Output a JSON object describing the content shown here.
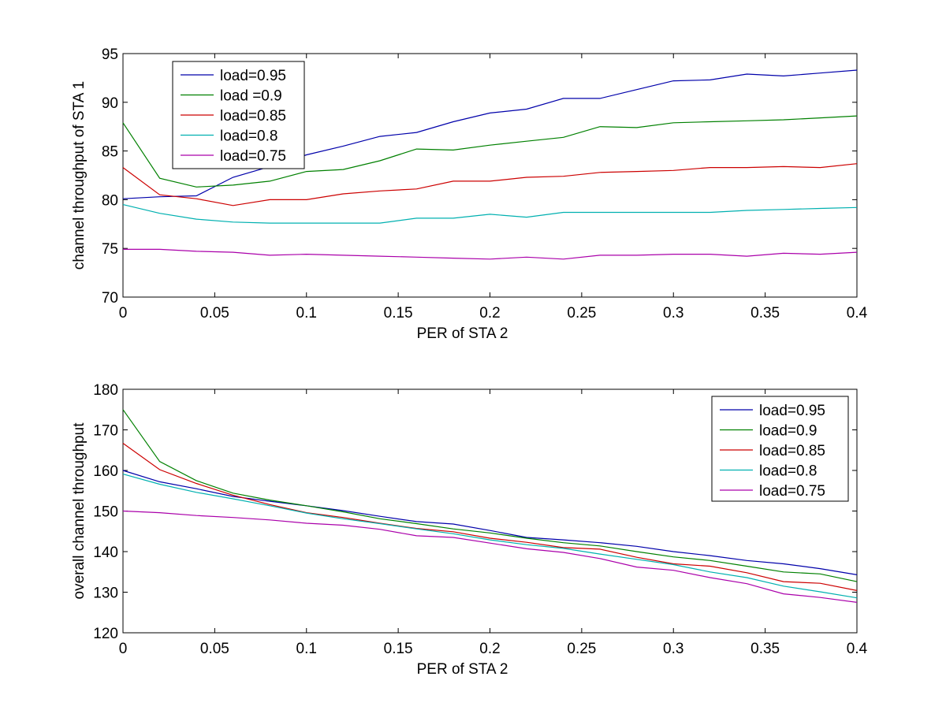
{
  "chart_data": [
    {
      "type": "line",
      "title": "",
      "xlabel": "PER of STA 2",
      "ylabel": "channel throughput of STA 1",
      "xlim": [
        0,
        0.4
      ],
      "ylim": [
        70,
        95
      ],
      "xticks": [
        0,
        0.05,
        0.1,
        0.15,
        0.2,
        0.25,
        0.3,
        0.35,
        0.4
      ],
      "xtick_labels": [
        "0",
        "0.05",
        "0.1",
        "0.15",
        "0.2",
        "0.25",
        "0.3",
        "0.35",
        "0.4"
      ],
      "yticks": [
        70,
        75,
        80,
        85,
        90,
        95
      ],
      "ytick_labels": [
        "70",
        "75",
        "80",
        "85",
        "90",
        "95"
      ],
      "grid": false,
      "legend_position": "top-left",
      "x": [
        0,
        0.02,
        0.04,
        0.06,
        0.08,
        0.1,
        0.12,
        0.14,
        0.16,
        0.18,
        0.2,
        0.22,
        0.24,
        0.26,
        0.28,
        0.3,
        0.32,
        0.34,
        0.36,
        0.38,
        0.4
      ],
      "series": [
        {
          "name": "load=0.95",
          "color": "#0000aa",
          "values": [
            80.1,
            80.3,
            80.4,
            82.3,
            83.4,
            84.6,
            85.5,
            86.5,
            86.9,
            88.0,
            88.9,
            89.3,
            90.4,
            90.4,
            91.3,
            92.2,
            92.3,
            92.9,
            92.7,
            93.0,
            93.3
          ]
        },
        {
          "name": "load =0.9",
          "color": "#008000",
          "values": [
            87.9,
            82.2,
            81.3,
            81.5,
            81.9,
            82.9,
            83.1,
            84.0,
            85.2,
            85.1,
            85.6,
            86.0,
            86.4,
            87.5,
            87.4,
            87.9,
            88.0,
            88.1,
            88.2,
            88.4,
            88.6
          ]
        },
        {
          "name": "load=0.85",
          "color": "#cc0000",
          "values": [
            83.3,
            80.5,
            80.1,
            79.4,
            80.0,
            80.0,
            80.6,
            80.9,
            81.1,
            81.9,
            81.9,
            82.3,
            82.4,
            82.8,
            82.9,
            83.0,
            83.3,
            83.3,
            83.4,
            83.3,
            83.7
          ]
        },
        {
          "name": "load=0.8",
          "color": "#00b0b0",
          "values": [
            79.5,
            78.6,
            78.0,
            77.7,
            77.6,
            77.6,
            77.6,
            77.6,
            78.1,
            78.1,
            78.5,
            78.2,
            78.7,
            78.7,
            78.7,
            78.7,
            78.7,
            78.9,
            79.0,
            79.1,
            79.2
          ]
        },
        {
          "name": "load=0.75",
          "color": "#aa00aa",
          "values": [
            74.9,
            74.9,
            74.7,
            74.6,
            74.3,
            74.4,
            74.3,
            74.2,
            74.1,
            74.0,
            73.9,
            74.1,
            73.9,
            74.3,
            74.3,
            74.4,
            74.4,
            74.2,
            74.5,
            74.4,
            74.6
          ]
        }
      ]
    },
    {
      "type": "line",
      "title": "",
      "xlabel": "PER of STA 2",
      "ylabel": "overall channel throughput",
      "xlim": [
        0,
        0.4
      ],
      "ylim": [
        120,
        180
      ],
      "xticks": [
        0,
        0.05,
        0.1,
        0.15,
        0.2,
        0.25,
        0.3,
        0.35,
        0.4
      ],
      "xtick_labels": [
        "0",
        "0.05",
        "0.1",
        "0.15",
        "0.2",
        "0.25",
        "0.3",
        "0.35",
        "0.4"
      ],
      "yticks": [
        120,
        130,
        140,
        150,
        160,
        170,
        180
      ],
      "ytick_labels": [
        "120",
        "130",
        "140",
        "150",
        "160",
        "170",
        "180"
      ],
      "grid": false,
      "legend_position": "top-right",
      "x": [
        0,
        0.02,
        0.04,
        0.06,
        0.08,
        0.1,
        0.12,
        0.14,
        0.16,
        0.18,
        0.2,
        0.22,
        0.24,
        0.26,
        0.28,
        0.3,
        0.32,
        0.34,
        0.36,
        0.38,
        0.4
      ],
      "series": [
        {
          "name": "load=0.95",
          "color": "#0000aa",
          "values": [
            160.0,
            157.2,
            155.5,
            153.6,
            152.4,
            151.3,
            150.1,
            148.7,
            147.4,
            146.8,
            145.2,
            143.5,
            142.9,
            142.2,
            141.3,
            140.0,
            139.0,
            137.8,
            137.0,
            135.8,
            134.3
          ]
        },
        {
          "name": "load=0.9",
          "color": "#008000",
          "values": [
            175.0,
            162.2,
            157.5,
            154.4,
            152.7,
            151.3,
            149.8,
            148.1,
            146.9,
            145.6,
            144.6,
            143.3,
            142.2,
            141.4,
            140.0,
            138.7,
            137.8,
            136.4,
            135.0,
            134.5,
            132.6
          ]
        },
        {
          "name": "load=0.85",
          "color": "#cc0000",
          "values": [
            166.7,
            160.2,
            156.8,
            153.9,
            151.6,
            149.6,
            148.4,
            147.0,
            145.7,
            144.9,
            143.3,
            142.3,
            141.0,
            140.6,
            138.6,
            137.0,
            136.4,
            134.8,
            132.6,
            132.2,
            130.4
          ]
        },
        {
          "name": "load=0.8",
          "color": "#00b0b0",
          "values": [
            159.1,
            156.6,
            154.6,
            153.0,
            151.3,
            149.5,
            148.1,
            146.9,
            145.6,
            144.4,
            142.9,
            141.7,
            140.8,
            139.4,
            138.1,
            136.8,
            135.0,
            133.6,
            131.5,
            130.1,
            128.6
          ]
        },
        {
          "name": "load=0.75",
          "color": "#aa00aa",
          "values": [
            150.0,
            149.6,
            148.9,
            148.4,
            147.8,
            147.0,
            146.5,
            145.5,
            143.9,
            143.5,
            142.1,
            140.7,
            139.8,
            138.3,
            136.2,
            135.4,
            133.6,
            132.1,
            129.6,
            128.7,
            127.5
          ]
        }
      ]
    }
  ]
}
